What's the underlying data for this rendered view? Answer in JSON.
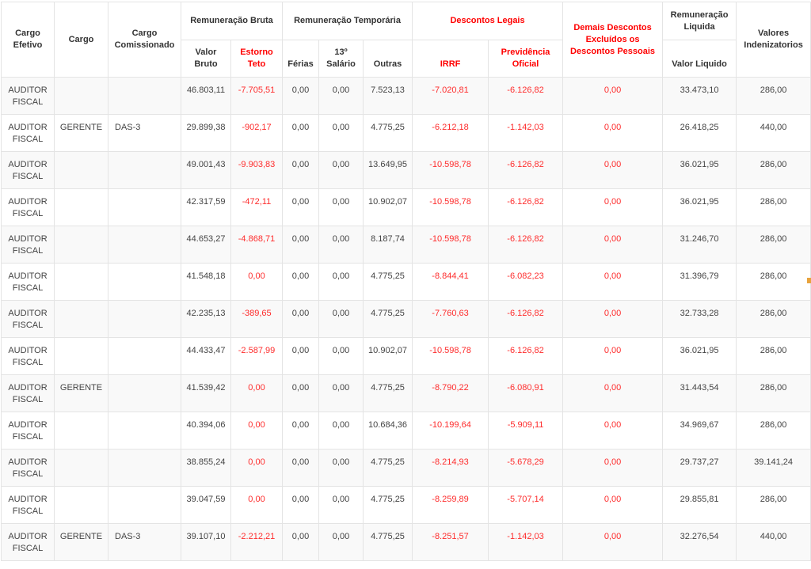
{
  "colors": {
    "header_red": "#ff0000",
    "value_red": "#fe2c2c",
    "header_text": "#333333",
    "body_text": "#444444",
    "row_alt_background": "#f9f9f9",
    "border": "#e4e4e4",
    "edge_marker_orange": "#e8a33d"
  },
  "table": {
    "headers": {
      "cargo_efetivo": "Cargo Efetivo",
      "cargo": "Cargo",
      "cargo_comissionado": "Cargo Comissionado",
      "remuneracao_bruta": "Remuneração Bruta",
      "valor_bruto": "Valor Bruto",
      "estorno_teto": "Estorno Teto",
      "remuneracao_temporaria": "Remuneração Temporária",
      "ferias": "Férias",
      "salario_13": "13º Salário",
      "outras": "Outras",
      "descontos_legais": "Descontos Legais",
      "irrf": "IRRF",
      "previdencia_oficial": "Previdência Oficial",
      "demais_descontos": "Demais Descontos Excluídos os Descontos Pessoais",
      "remuneracao_liquida": "Remuneração Liquida",
      "valor_liquido": "Valor Liquido",
      "valores_indenizatorios": "Valores Indenizatorios"
    },
    "rows": [
      {
        "cargo_efetivo": "AUDITOR FISCAL",
        "cargo": "",
        "cargo_comissionado": "",
        "valor_bruto": "46.803,11",
        "estorno_teto": "-7.705,51",
        "ferias": "0,00",
        "salario_13": "0,00",
        "outras": "7.523,13",
        "irrf": "-7.020,81",
        "previdencia_oficial": "-6.126,82",
        "demais_descontos": "0,00",
        "valor_liquido": "33.473,10",
        "valores_indenizatorios": "286,00"
      },
      {
        "cargo_efetivo": "AUDITOR FISCAL",
        "cargo": "GERENTE",
        "cargo_comissionado": "DAS-3",
        "valor_bruto": "29.899,38",
        "estorno_teto": "-902,17",
        "ferias": "0,00",
        "salario_13": "0,00",
        "outras": "4.775,25",
        "irrf": "-6.212,18",
        "previdencia_oficial": "-1.142,03",
        "demais_descontos": "0,00",
        "valor_liquido": "26.418,25",
        "valores_indenizatorios": "440,00"
      },
      {
        "cargo_efetivo": "AUDITOR FISCAL",
        "cargo": "",
        "cargo_comissionado": "",
        "valor_bruto": "49.001,43",
        "estorno_teto": "-9.903,83",
        "ferias": "0,00",
        "salario_13": "0,00",
        "outras": "13.649,95",
        "irrf": "-10.598,78",
        "previdencia_oficial": "-6.126,82",
        "demais_descontos": "0,00",
        "valor_liquido": "36.021,95",
        "valores_indenizatorios": "286,00"
      },
      {
        "cargo_efetivo": "AUDITOR FISCAL",
        "cargo": "",
        "cargo_comissionado": "",
        "valor_bruto": "42.317,59",
        "estorno_teto": "-472,11",
        "ferias": "0,00",
        "salario_13": "0,00",
        "outras": "10.902,07",
        "irrf": "-10.598,78",
        "previdencia_oficial": "-6.126,82",
        "demais_descontos": "0,00",
        "valor_liquido": "36.021,95",
        "valores_indenizatorios": "286,00"
      },
      {
        "cargo_efetivo": "AUDITOR FISCAL",
        "cargo": "",
        "cargo_comissionado": "",
        "valor_bruto": "44.653,27",
        "estorno_teto": "-4.868,71",
        "ferias": "0,00",
        "salario_13": "0,00",
        "outras": "8.187,74",
        "irrf": "-10.598,78",
        "previdencia_oficial": "-6.126,82",
        "demais_descontos": "0,00",
        "valor_liquido": "31.246,70",
        "valores_indenizatorios": "286,00"
      },
      {
        "cargo_efetivo": "AUDITOR FISCAL",
        "cargo": "",
        "cargo_comissionado": "",
        "valor_bruto": "41.548,18",
        "estorno_teto": "0,00",
        "ferias": "0,00",
        "salario_13": "0,00",
        "outras": "4.775,25",
        "irrf": "-8.844,41",
        "previdencia_oficial": "-6.082,23",
        "demais_descontos": "0,00",
        "valor_liquido": "31.396,79",
        "valores_indenizatorios": "286,00"
      },
      {
        "cargo_efetivo": "AUDITOR FISCAL",
        "cargo": "",
        "cargo_comissionado": "",
        "valor_bruto": "42.235,13",
        "estorno_teto": "-389,65",
        "ferias": "0,00",
        "salario_13": "0,00",
        "outras": "4.775,25",
        "irrf": "-7.760,63",
        "previdencia_oficial": "-6.126,82",
        "demais_descontos": "0,00",
        "valor_liquido": "32.733,28",
        "valores_indenizatorios": "286,00"
      },
      {
        "cargo_efetivo": "AUDITOR FISCAL",
        "cargo": "",
        "cargo_comissionado": "",
        "valor_bruto": "44.433,47",
        "estorno_teto": "-2.587,99",
        "ferias": "0,00",
        "salario_13": "0,00",
        "outras": "10.902,07",
        "irrf": "-10.598,78",
        "previdencia_oficial": "-6.126,82",
        "demais_descontos": "0,00",
        "valor_liquido": "36.021,95",
        "valores_indenizatorios": "286,00"
      },
      {
        "cargo_efetivo": "AUDITOR FISCAL",
        "cargo": "GERENTE",
        "cargo_comissionado": "",
        "valor_bruto": "41.539,42",
        "estorno_teto": "0,00",
        "ferias": "0,00",
        "salario_13": "0,00",
        "outras": "4.775,25",
        "irrf": "-8.790,22",
        "previdencia_oficial": "-6.080,91",
        "demais_descontos": "0,00",
        "valor_liquido": "31.443,54",
        "valores_indenizatorios": "286,00"
      },
      {
        "cargo_efetivo": "AUDITOR FISCAL",
        "cargo": "",
        "cargo_comissionado": "",
        "valor_bruto": "40.394,06",
        "estorno_teto": "0,00",
        "ferias": "0,00",
        "salario_13": "0,00",
        "outras": "10.684,36",
        "irrf": "-10.199,64",
        "previdencia_oficial": "-5.909,11",
        "demais_descontos": "0,00",
        "valor_liquido": "34.969,67",
        "valores_indenizatorios": "286,00"
      },
      {
        "cargo_efetivo": "AUDITOR FISCAL",
        "cargo": "",
        "cargo_comissionado": "",
        "valor_bruto": "38.855,24",
        "estorno_teto": "0,00",
        "ferias": "0,00",
        "salario_13": "0,00",
        "outras": "4.775,25",
        "irrf": "-8.214,93",
        "previdencia_oficial": "-5.678,29",
        "demais_descontos": "0,00",
        "valor_liquido": "29.737,27",
        "valores_indenizatorios": "39.141,24"
      },
      {
        "cargo_efetivo": "AUDITOR FISCAL",
        "cargo": "",
        "cargo_comissionado": "",
        "valor_bruto": "39.047,59",
        "estorno_teto": "0,00",
        "ferias": "0,00",
        "salario_13": "0,00",
        "outras": "4.775,25",
        "irrf": "-8.259,89",
        "previdencia_oficial": "-5.707,14",
        "demais_descontos": "0,00",
        "valor_liquido": "29.855,81",
        "valores_indenizatorios": "286,00"
      },
      {
        "cargo_efetivo": "AUDITOR FISCAL",
        "cargo": "GERENTE",
        "cargo_comissionado": "DAS-3",
        "valor_bruto": "39.107,10",
        "estorno_teto": "-2.212,21",
        "ferias": "0,00",
        "salario_13": "0,00",
        "outras": "4.775,25",
        "irrf": "-8.251,57",
        "previdencia_oficial": "-1.142,03",
        "demais_descontos": "0,00",
        "valor_liquido": "32.276,54",
        "valores_indenizatorios": "440,00"
      }
    ]
  }
}
